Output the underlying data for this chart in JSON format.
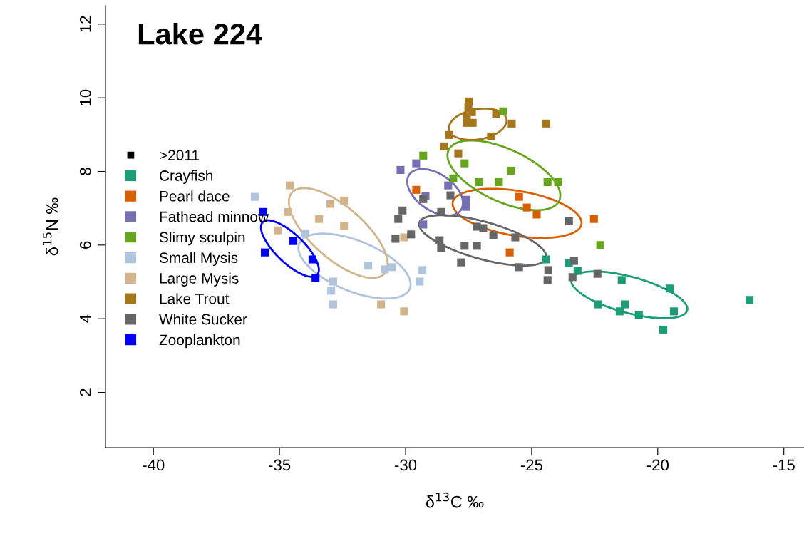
{
  "chart_data": {
    "type": "scatter",
    "title": "Lake 224",
    "xlabel": "δ$^{13}$C ‰",
    "ylabel": "δ$^{15}$N ‰",
    "legend_title": ">2011",
    "xlim": [
      -41.9,
      -14.2
    ],
    "ylim": [
      0.5,
      12.5
    ],
    "xticks": [
      -40,
      -35,
      -30,
      -25,
      -20,
      -15
    ],
    "yticks": [
      2,
      4,
      6,
      8,
      10,
      12
    ],
    "grid": false,
    "legend": "left",
    "marker": "square",
    "series": [
      {
        "name": "Crayfish",
        "color": "#1b9e77",
        "x": [
          -24.43,
          -23.52,
          -23.18,
          -21.43,
          -19.53,
          -22.36,
          -21.31,
          -21.51,
          -20.75,
          -19.36,
          -19.78,
          -16.36
        ],
        "values": [
          5.61,
          5.51,
          5.3,
          5.05,
          4.82,
          4.39,
          4.39,
          4.2,
          4.1,
          4.2,
          3.7,
          4.51
        ]
      },
      {
        "name": "Pearl dace",
        "color": "#d95f02",
        "x": [
          -29.58,
          -25.5,
          -25.19,
          -24.8,
          -22.53,
          -25.87
        ],
        "values": [
          7.5,
          7.31,
          7.02,
          6.83,
          6.71,
          5.8
        ]
      },
      {
        "name": "Fathead minnow",
        "color": "#7570b3",
        "x": [
          -30.2,
          -29.58,
          -28.31,
          -29.21,
          -27.6,
          -27.6,
          -29.3
        ],
        "values": [
          8.04,
          8.22,
          7.62,
          7.33,
          7.23,
          7.04,
          6.56
        ]
      },
      {
        "name": "Slimy sculpin",
        "color": "#66a61e",
        "x": [
          -26.13,
          -29.3,
          -27.66,
          -28.11,
          -25.82,
          -27.09,
          -26.3,
          -24.37,
          -23.95,
          -22.28
        ],
        "values": [
          9.63,
          8.43,
          8.22,
          7.81,
          8.02,
          7.71,
          7.71,
          7.71,
          7.71,
          6.0
        ]
      },
      {
        "name": "Small Mysis",
        "color": "#b0c4de",
        "x": [
          -35.98,
          -33.97,
          -31.48,
          -30.54,
          -30.83,
          -29.33,
          -29.44,
          -32.87,
          -32.95,
          -32.87
        ],
        "values": [
          7.31,
          6.32,
          5.44,
          5.4,
          5.34,
          5.32,
          5.01,
          5.01,
          4.76,
          4.39
        ]
      },
      {
        "name": "Large Mysis",
        "color": "#d2b48c",
        "x": [
          -34.59,
          -32.44,
          -32.98,
          -34.65,
          -33.43,
          -32.44,
          -35.07,
          -30.97,
          -30.06,
          -30.06
        ],
        "values": [
          7.62,
          7.21,
          7.12,
          6.9,
          6.71,
          6.52,
          6.4,
          4.39,
          4.2,
          6.21
        ]
      },
      {
        "name": "Lake Trout",
        "color": "#a6761d",
        "x": [
          -27.49,
          -27.51,
          -27.37,
          -27.57,
          -27.34,
          -27.57,
          -26.41,
          -25.79,
          -24.43,
          -28.28,
          -26.61,
          -28.48,
          -27.91
        ],
        "values": [
          9.9,
          9.74,
          9.61,
          9.49,
          9.32,
          9.32,
          9.55,
          9.3,
          9.3,
          8.99,
          8.95,
          8.68,
          8.49
        ]
      },
      {
        "name": "White Sucker",
        "color": "#666666",
        "x": [
          -29.3,
          -28.22,
          -28.59,
          -30.12,
          -30.29,
          -29.78,
          -30.4,
          -27.17,
          -26.92,
          -26.52,
          -25.65,
          -23.52,
          -28.65,
          -28.59,
          -27.66,
          -27.17,
          -27.8,
          -25.5,
          -23.32,
          -24.34,
          -22.39,
          -23.38,
          -24.37
        ],
        "values": [
          7.25,
          7.35,
          6.9,
          6.94,
          6.71,
          6.29,
          6.17,
          6.5,
          6.46,
          6.27,
          6.21,
          6.65,
          6.13,
          5.92,
          5.98,
          5.98,
          5.53,
          5.4,
          5.57,
          5.32,
          5.22,
          5.13,
          5.05
        ]
      },
      {
        "name": "Zooplankton",
        "color": "#0000ff",
        "x": [
          -35.64,
          -34.45,
          -35.58,
          -33.69,
          -33.57
        ],
        "values": [
          6.9,
          6.11,
          5.8,
          5.61,
          5.11
        ]
      }
    ]
  }
}
